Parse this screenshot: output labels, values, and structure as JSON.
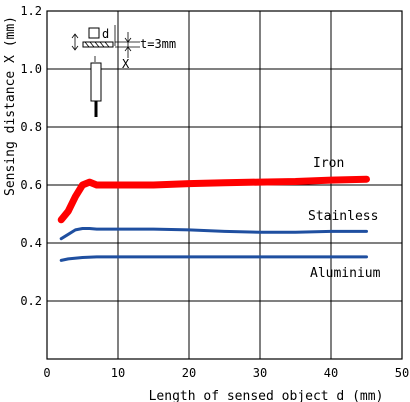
{
  "chart_data": {
    "type": "line",
    "title": "",
    "xlabel": "Length of sensed object d (mm)",
    "ylabel": "Sensing distance X (mm)",
    "xlim": [
      0,
      50
    ],
    "ylim": [
      0,
      1.2
    ],
    "xticks": [
      0,
      10,
      20,
      30,
      40,
      50
    ],
    "yticks": [
      0.2,
      0.4,
      0.6,
      0.8,
      1.0,
      1.2
    ],
    "xtick_labels": [
      "0",
      "10",
      "20",
      "30",
      "40",
      "50"
    ],
    "ytick_labels": [
      "0.2",
      "0.4",
      "0.6",
      "0.8",
      "1.0",
      "1.2"
    ],
    "grid": true,
    "series": [
      {
        "name": "Iron",
        "color": "#ff0000",
        "points": [
          [
            2,
            0.48
          ],
          [
            3,
            0.51
          ],
          [
            4,
            0.56
          ],
          [
            5,
            0.6
          ],
          [
            6,
            0.61
          ],
          [
            7,
            0.6
          ],
          [
            8,
            0.6
          ],
          [
            10,
            0.6
          ],
          [
            15,
            0.6
          ],
          [
            20,
            0.605
          ],
          [
            25,
            0.608
          ],
          [
            30,
            0.61
          ],
          [
            35,
            0.612
          ],
          [
            40,
            0.617
          ],
          [
            45,
            0.62
          ]
        ]
      },
      {
        "name": "Stainless",
        "color": "#1f4fa0",
        "points": [
          [
            2,
            0.415
          ],
          [
            3,
            0.43
          ],
          [
            4,
            0.445
          ],
          [
            5,
            0.45
          ],
          [
            6,
            0.45
          ],
          [
            7,
            0.448
          ],
          [
            10,
            0.448
          ],
          [
            15,
            0.448
          ],
          [
            20,
            0.445
          ],
          [
            25,
            0.44
          ],
          [
            30,
            0.437
          ],
          [
            35,
            0.437
          ],
          [
            40,
            0.44
          ],
          [
            45,
            0.44
          ]
        ]
      },
      {
        "name": "Aluminium",
        "color": "#1f4fa0",
        "points": [
          [
            2,
            0.34
          ],
          [
            3,
            0.345
          ],
          [
            5,
            0.35
          ],
          [
            7,
            0.352
          ],
          [
            10,
            0.352
          ],
          [
            15,
            0.352
          ],
          [
            20,
            0.352
          ],
          [
            30,
            0.352
          ],
          [
            40,
            0.352
          ],
          [
            45,
            0.352
          ]
        ]
      }
    ],
    "inset": {
      "label_d": "d",
      "label_t": "t=3mm",
      "label_x": "X"
    }
  }
}
